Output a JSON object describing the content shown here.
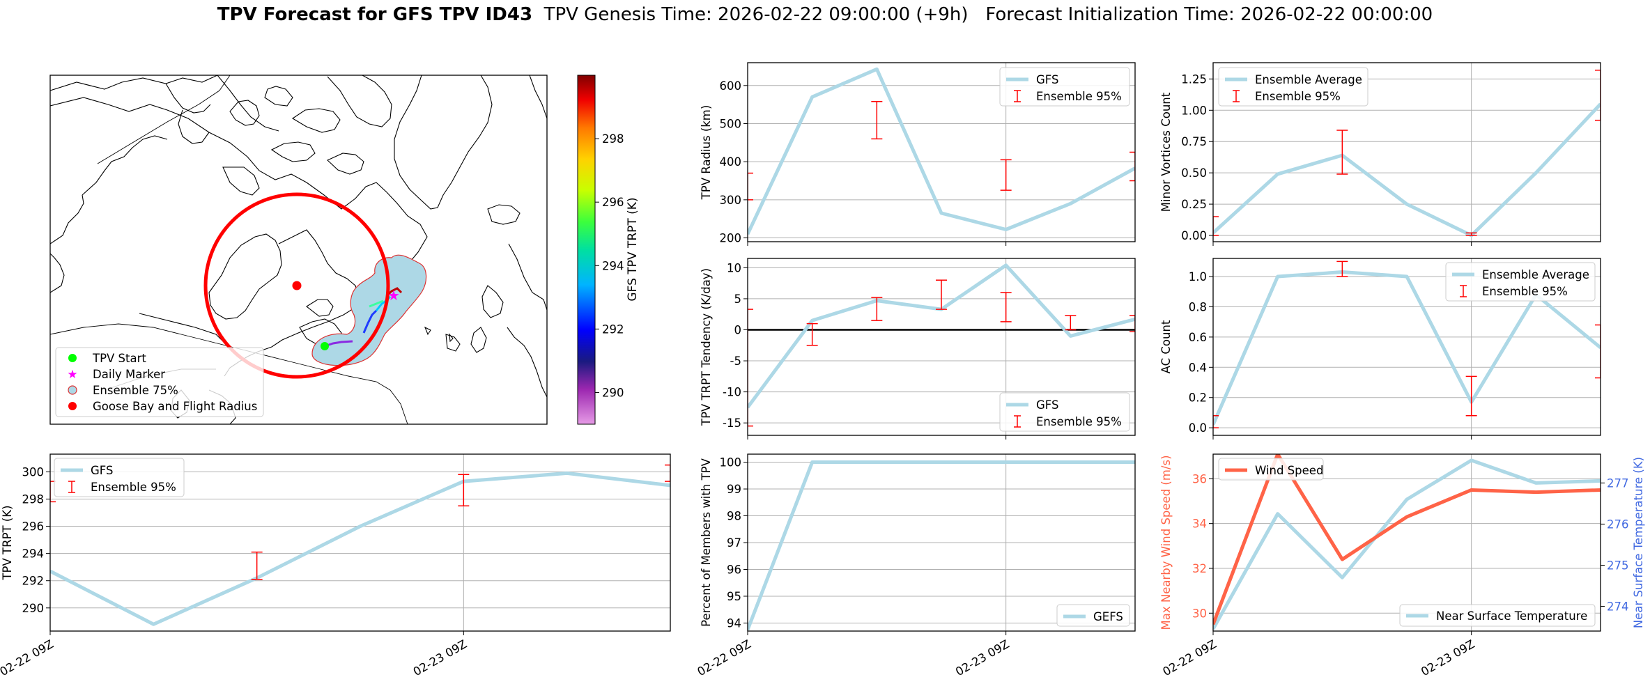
{
  "figure": {
    "title_bold": "TPV Forecast for GFS TPV ID43",
    "title_rest": "TPV Genesis Time: 2026-02-22 09:00:00 (+9h)   Forecast Initialization Time: 2026-02-22 00:00:00"
  },
  "map": {
    "colorbar_label": "GFS TPV TRPT (K)",
    "colorbar_ticks": [
      290,
      292,
      294,
      296,
      298
    ],
    "colorbar_range": [
      289,
      300
    ],
    "legend": [
      "TPV Start",
      "Daily Marker",
      "Ensemble 75%",
      "Goose Bay and Flight Radius"
    ]
  },
  "chart_data": [
    {
      "id": "radius",
      "type": "line",
      "ylabel": "TPV Radius (km)",
      "ylim": [
        190,
        660
      ],
      "yticks": [
        200,
        300,
        400,
        500,
        600
      ],
      "series": [
        {
          "name": "GFS",
          "x": [
            0,
            1,
            2,
            3,
            4,
            5,
            6
          ],
          "values": [
            210,
            570,
            643,
            265,
            222,
            290,
            383
          ]
        }
      ],
      "errorbars": {
        "name": "Ensemble 95%",
        "x": [
          0,
          2,
          4,
          6
        ],
        "low": [
          300,
          460,
          325,
          350
        ],
        "high": [
          370,
          558,
          405,
          425
        ]
      },
      "legend": [
        "GFS",
        "Ensemble 95%"
      ],
      "legend_loc": "upper right",
      "grid": true
    },
    {
      "id": "minor",
      "type": "line",
      "ylabel": "Minor Vortices Count",
      "ylim": [
        -0.05,
        1.38
      ],
      "yticks": [
        "0.00",
        "0.25",
        "0.50",
        "0.75",
        "1.00",
        "1.25"
      ],
      "series": [
        {
          "name": "Ensemble Average",
          "x": [
            0,
            1,
            2,
            3,
            4,
            5,
            6
          ],
          "values": [
            0.02,
            0.49,
            0.64,
            0.25,
            0.0,
            0.5,
            1.05
          ]
        }
      ],
      "errorbars": {
        "name": "Ensemble 95%",
        "x": [
          0,
          2,
          4,
          6
        ],
        "low": [
          0.0,
          0.49,
          0.0,
          0.92
        ],
        "high": [
          0.15,
          0.84,
          0.02,
          1.32
        ]
      },
      "legend": [
        "Ensemble Average",
        "Ensemble 95%"
      ],
      "legend_loc": "upper left",
      "grid": true
    },
    {
      "id": "tendency",
      "type": "line",
      "ylabel": "TPV TRPT Tendency (K/day)",
      "ylim": [
        -17,
        11.5
      ],
      "yticks": [
        -15,
        -10,
        -5,
        0,
        5,
        10
      ],
      "zero_line": true,
      "series": [
        {
          "name": "GFS",
          "x": [
            0,
            1,
            2,
            3,
            4,
            5,
            6
          ],
          "values": [
            -12.5,
            1.5,
            4.7,
            3.3,
            10.4,
            -1.0,
            1.7
          ]
        }
      ],
      "errorbars": {
        "name": "Ensemble 95%",
        "x": [
          0,
          1,
          2,
          3,
          4,
          5,
          6
        ],
        "low": [
          -15.5,
          -2.5,
          1.5,
          3.3,
          1.3,
          0.0,
          -0.3
        ],
        "high": [
          3.3,
          1.0,
          5.2,
          8.0,
          6.0,
          2.3,
          2.3
        ]
      },
      "legend": [
        "GFS",
        "Ensemble 95%"
      ],
      "legend_loc": "lower right",
      "grid": true
    },
    {
      "id": "ac",
      "type": "line",
      "ylabel": "AC Count",
      "ylim": [
        -0.05,
        1.12
      ],
      "yticks": [
        "0.0",
        "0.2",
        "0.4",
        "0.6",
        "0.8",
        "1.0"
      ],
      "series": [
        {
          "name": "Ensemble Average",
          "x": [
            0,
            1,
            2,
            3,
            4,
            5,
            6
          ],
          "values": [
            0.02,
            1.0,
            1.03,
            1.0,
            0.17,
            0.88,
            0.53
          ]
        }
      ],
      "errorbars": {
        "name": "Ensemble 95%",
        "x": [
          0,
          2,
          4,
          6
        ],
        "low": [
          0.0,
          1.0,
          0.08,
          0.33
        ],
        "high": [
          0.08,
          1.1,
          0.34,
          0.68
        ]
      },
      "legend": [
        "Ensemble Average",
        "Ensemble 95%"
      ],
      "legend_loc": "upper right",
      "grid": true
    },
    {
      "id": "trpt",
      "type": "line",
      "ylabel": "TPV TRPT (K)",
      "ylim": [
        288.3,
        301.3
      ],
      "yticks": [
        290,
        292,
        294,
        296,
        298,
        300
      ],
      "xlabels": [
        "02-22 09Z",
        "02-23 09Z"
      ],
      "xlabel_pos": [
        0,
        4
      ],
      "series": [
        {
          "name": "GFS",
          "x": [
            0,
            1,
            2,
            3,
            4,
            5,
            6
          ],
          "values": [
            292.7,
            288.8,
            292.2,
            296.0,
            299.3,
            299.9,
            299.0
          ]
        }
      ],
      "errorbars": {
        "name": "Ensemble 95%",
        "x": [
          0,
          2,
          4,
          6
        ],
        "low": [
          297.8,
          292.1,
          297.5,
          299.3
        ],
        "high": [
          299.3,
          294.1,
          299.8,
          300.5
        ]
      },
      "legend": [
        "GFS",
        "Ensemble 95%"
      ],
      "legend_loc": "upper left",
      "grid": true
    },
    {
      "id": "percent",
      "type": "line",
      "ylabel": "Percent of Members with TPV",
      "ylim": [
        93.7,
        100.3
      ],
      "yticks": [
        94,
        95,
        96,
        97,
        98,
        99,
        100
      ],
      "xlabels": [
        "02-22 09Z",
        "02-23 09Z"
      ],
      "xlabel_pos": [
        0,
        4
      ],
      "series": [
        {
          "name": "GEFS",
          "x": [
            0,
            1,
            2,
            3,
            4,
            5,
            6
          ],
          "values": [
            93.75,
            100,
            100,
            100,
            100,
            100,
            100
          ]
        }
      ],
      "legend": [
        "GEFS"
      ],
      "legend_loc": "lower right",
      "grid": true
    },
    {
      "id": "wind",
      "type": "line",
      "ylabel": "Max Nearby Wind Speed (m/s)",
      "ylim": [
        29.2,
        37.1
      ],
      "yticks": [
        30,
        32,
        34,
        36
      ],
      "ylabel2": "Near Surface Temperature (K)",
      "ylim2": [
        273.4,
        277.7
      ],
      "yticks2": [
        274,
        275,
        276,
        277
      ],
      "xlabels": [
        "02-22 09Z",
        "02-23 09Z"
      ],
      "xlabel_pos": [
        0,
        4
      ],
      "series": [
        {
          "name": "Wind Speed",
          "axis": "left",
          "x": [
            0,
            1,
            2,
            3,
            4,
            5,
            6
          ],
          "values": [
            29.5,
            37.1,
            32.4,
            34.3,
            35.5,
            35.4,
            35.5
          ]
        }
      ],
      "series2": [
        {
          "name": "Near Surface Temperature",
          "axis": "right",
          "x": [
            0,
            1,
            2,
            3,
            4,
            5,
            6
          ],
          "values": [
            273.45,
            276.25,
            274.7,
            276.6,
            277.55,
            277.0,
            277.05
          ]
        }
      ],
      "legend": [
        "Wind Speed"
      ],
      "legend2": [
        "Near Surface Temperature"
      ],
      "grid": true,
      "colors": {
        "wind": "#ff6347",
        "temp": "#add8e6",
        "left_axis": "#ff6347",
        "right_axis": "#4169e1"
      }
    }
  ],
  "colors": {
    "gfs_line": "#add8e6",
    "errorbar": "#ff0000",
    "radius_circle": "#ff0000",
    "ensemble_fill": "#add8e6"
  }
}
